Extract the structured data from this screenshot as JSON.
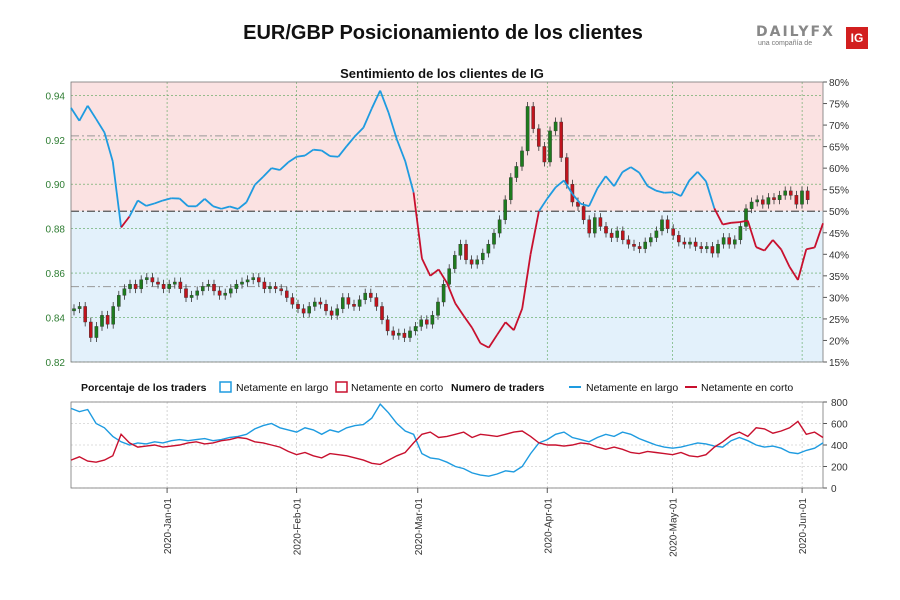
{
  "header": {
    "title": "EUR/GBP Posicionamiento de los clientes",
    "logo": {
      "word": "DAILYFX",
      "sub": "una compañía de",
      "badge": "IG"
    }
  },
  "chart_data": [
    {
      "type": "candlestick",
      "title": "Sentimiento de los clientes de IG",
      "y_left_ticks": [
        0.82,
        0.84,
        0.86,
        0.88,
        0.9,
        0.92,
        0.94
      ],
      "y_left_labels": [
        "0.82",
        "0.84",
        "0.86",
        "0.88",
        "0.90",
        "0.92",
        "0.94"
      ],
      "ylim": [
        0.82,
        0.946
      ],
      "y_right_ticks": [
        15,
        20,
        25,
        30,
        35,
        40,
        45,
        50,
        55,
        60,
        65,
        70,
        75,
        80
      ],
      "y_right_labels": [
        "15%",
        "20%",
        "25%",
        "30%",
        "35%",
        "40%",
        "45%",
        "50%",
        "55%",
        "60%",
        "65%",
        "70%",
        "75%",
        "80%"
      ],
      "y_right_lim": [
        15,
        80
      ],
      "reference_lines_pct": [
        32.5,
        50,
        67.5
      ],
      "x_ticks": [
        "2020-Jan-01",
        "2020-Feb-01",
        "2020-Mar-01",
        "2020-Apr-01",
        "2020-May-01",
        "2020-Jun-01"
      ],
      "x_tick_days": [
        23,
        54,
        83,
        114,
        144,
        175
      ],
      "x_range_days": [
        0,
        180
      ],
      "colors": {
        "up": "#1e7b1e",
        "down": "#c0141d",
        "long": "#1e9be0",
        "short": "#c8102e",
        "long_fill": "#e3f1fb",
        "short_fill": "#fbe2e2",
        "left_axis": "#2e7d32"
      },
      "candles_close": [
        [
          0,
          0.844
        ],
        [
          1,
          0.845
        ],
        [
          2,
          0.838
        ],
        [
          3,
          0.831
        ],
        [
          4,
          0.836
        ],
        [
          5,
          0.841
        ],
        [
          6,
          0.837
        ],
        [
          7,
          0.845
        ],
        [
          8,
          0.85
        ],
        [
          9,
          0.853
        ],
        [
          10,
          0.855
        ],
        [
          11,
          0.853
        ],
        [
          12,
          0.857
        ],
        [
          13,
          0.858
        ],
        [
          14,
          0.856
        ],
        [
          15,
          0.855
        ],
        [
          16,
          0.853
        ],
        [
          17,
          0.855
        ],
        [
          18,
          0.856
        ],
        [
          19,
          0.853
        ],
        [
          20,
          0.849
        ],
        [
          21,
          0.85
        ],
        [
          22,
          0.852
        ],
        [
          23,
          0.854
        ],
        [
          24,
          0.855
        ],
        [
          25,
          0.852
        ],
        [
          26,
          0.85
        ],
        [
          27,
          0.851
        ],
        [
          28,
          0.853
        ],
        [
          29,
          0.855
        ],
        [
          30,
          0.856
        ],
        [
          31,
          0.857
        ],
        [
          32,
          0.858
        ],
        [
          33,
          0.856
        ],
        [
          34,
          0.853
        ],
        [
          35,
          0.854
        ],
        [
          36,
          0.853
        ],
        [
          37,
          0.852
        ],
        [
          38,
          0.849
        ],
        [
          39,
          0.846
        ],
        [
          40,
          0.844
        ],
        [
          41,
          0.842
        ],
        [
          42,
          0.845
        ],
        [
          43,
          0.847
        ],
        [
          44,
          0.846
        ],
        [
          45,
          0.843
        ],
        [
          46,
          0.841
        ],
        [
          47,
          0.844
        ],
        [
          48,
          0.849
        ],
        [
          49,
          0.846
        ],
        [
          50,
          0.845
        ],
        [
          51,
          0.848
        ],
        [
          52,
          0.851
        ],
        [
          53,
          0.849
        ],
        [
          54,
          0.845
        ],
        [
          55,
          0.839
        ],
        [
          56,
          0.834
        ],
        [
          57,
          0.832
        ],
        [
          58,
          0.833
        ],
        [
          59,
          0.831
        ],
        [
          60,
          0.834
        ],
        [
          61,
          0.836
        ],
        [
          62,
          0.839
        ],
        [
          63,
          0.837
        ],
        [
          64,
          0.841
        ],
        [
          65,
          0.847
        ],
        [
          66,
          0.855
        ],
        [
          67,
          0.862
        ],
        [
          68,
          0.868
        ],
        [
          69,
          0.873
        ],
        [
          70,
          0.866
        ],
        [
          71,
          0.864
        ],
        [
          72,
          0.866
        ],
        [
          73,
          0.869
        ],
        [
          74,
          0.873
        ],
        [
          75,
          0.878
        ],
        [
          76,
          0.884
        ],
        [
          77,
          0.893
        ],
        [
          78,
          0.903
        ],
        [
          79,
          0.908
        ],
        [
          80,
          0.915
        ],
        [
          81,
          0.935
        ],
        [
          82,
          0.925
        ],
        [
          83,
          0.917
        ],
        [
          84,
          0.91
        ],
        [
          85,
          0.924
        ],
        [
          86,
          0.928
        ],
        [
          87,
          0.912
        ],
        [
          88,
          0.9
        ],
        [
          89,
          0.892
        ],
        [
          90,
          0.89
        ],
        [
          91,
          0.884
        ],
        [
          92,
          0.878
        ],
        [
          93,
          0.885
        ],
        [
          94,
          0.881
        ],
        [
          95,
          0.878
        ],
        [
          96,
          0.876
        ],
        [
          97,
          0.879
        ],
        [
          98,
          0.875
        ],
        [
          99,
          0.873
        ],
        [
          100,
          0.872
        ],
        [
          101,
          0.871
        ],
        [
          102,
          0.874
        ],
        [
          103,
          0.876
        ],
        [
          104,
          0.879
        ],
        [
          105,
          0.884
        ],
        [
          106,
          0.88
        ],
        [
          107,
          0.877
        ],
        [
          108,
          0.874
        ],
        [
          109,
          0.873
        ],
        [
          110,
          0.874
        ],
        [
          111,
          0.872
        ],
        [
          112,
          0.871
        ],
        [
          113,
          0.872
        ],
        [
          114,
          0.869
        ],
        [
          115,
          0.873
        ],
        [
          116,
          0.876
        ],
        [
          117,
          0.873
        ],
        [
          118,
          0.875
        ],
        [
          119,
          0.881
        ],
        [
          120,
          0.889
        ],
        [
          121,
          0.892
        ],
        [
          122,
          0.893
        ],
        [
          123,
          0.891
        ],
        [
          124,
          0.894
        ],
        [
          125,
          0.893
        ],
        [
          126,
          0.895
        ],
        [
          127,
          0.897
        ],
        [
          128,
          0.895
        ],
        [
          129,
          0.891
        ],
        [
          130,
          0.897
        ],
        [
          131,
          0.893
        ]
      ]
    },
    {
      "type": "line",
      "legend_left_title": "Porcentaje de los traders",
      "legend_right_title": "Numero de traders",
      "series": [
        {
          "name": "Netamente en largo"
        },
        {
          "name": "Netamente en corto"
        }
      ],
      "y_ticks": [
        0,
        200,
        400,
        600,
        800
      ],
      "y_labels": [
        "0",
        "200",
        "400",
        "600",
        "800"
      ],
      "ylim": [
        0,
        800
      ],
      "long_count": [
        [
          0,
          740
        ],
        [
          2,
          710
        ],
        [
          4,
          730
        ],
        [
          6,
          600
        ],
        [
          8,
          560
        ],
        [
          10,
          480
        ],
        [
          12,
          430
        ],
        [
          14,
          400
        ],
        [
          16,
          420
        ],
        [
          18,
          410
        ],
        [
          20,
          430
        ],
        [
          22,
          420
        ],
        [
          24,
          440
        ],
        [
          26,
          450
        ],
        [
          28,
          440
        ],
        [
          30,
          450
        ],
        [
          32,
          460
        ],
        [
          34,
          440
        ],
        [
          36,
          450
        ],
        [
          38,
          470
        ],
        [
          40,
          480
        ],
        [
          42,
          500
        ],
        [
          44,
          550
        ],
        [
          46,
          580
        ],
        [
          48,
          600
        ],
        [
          50,
          560
        ],
        [
          52,
          540
        ],
        [
          54,
          520
        ],
        [
          56,
          560
        ],
        [
          58,
          540
        ],
        [
          60,
          500
        ],
        [
          62,
          540
        ],
        [
          64,
          520
        ],
        [
          66,
          560
        ],
        [
          68,
          580
        ],
        [
          70,
          590
        ],
        [
          72,
          650
        ],
        [
          74,
          780
        ],
        [
          76,
          700
        ],
        [
          78,
          600
        ],
        [
          80,
          530
        ],
        [
          82,
          500
        ],
        [
          84,
          320
        ],
        [
          86,
          280
        ],
        [
          88,
          270
        ],
        [
          90,
          240
        ],
        [
          92,
          200
        ],
        [
          94,
          180
        ],
        [
          96,
          140
        ],
        [
          98,
          120
        ],
        [
          100,
          110
        ],
        [
          102,
          130
        ],
        [
          104,
          160
        ],
        [
          106,
          150
        ],
        [
          108,
          200
        ],
        [
          110,
          320
        ],
        [
          112,
          420
        ],
        [
          114,
          450
        ],
        [
          116,
          500
        ],
        [
          118,
          520
        ],
        [
          120,
          470
        ],
        [
          122,
          450
        ],
        [
          124,
          430
        ],
        [
          126,
          470
        ],
        [
          128,
          500
        ],
        [
          130,
          480
        ],
        [
          132,
          520
        ],
        [
          134,
          500
        ],
        [
          136,
          460
        ],
        [
          138,
          430
        ],
        [
          140,
          400
        ],
        [
          142,
          380
        ],
        [
          144,
          370
        ],
        [
          146,
          380
        ],
        [
          148,
          400
        ],
        [
          150,
          420
        ],
        [
          152,
          410
        ],
        [
          154,
          390
        ],
        [
          156,
          380
        ],
        [
          158,
          440
        ],
        [
          160,
          470
        ],
        [
          162,
          440
        ],
        [
          164,
          400
        ],
        [
          166,
          380
        ],
        [
          168,
          390
        ],
        [
          170,
          370
        ],
        [
          172,
          330
        ],
        [
          174,
          320
        ],
        [
          176,
          350
        ],
        [
          178,
          370
        ],
        [
          180,
          420
        ]
      ],
      "short_count": [
        [
          0,
          260
        ],
        [
          2,
          290
        ],
        [
          4,
          250
        ],
        [
          6,
          240
        ],
        [
          8,
          260
        ],
        [
          10,
          300
        ],
        [
          12,
          500
        ],
        [
          14,
          420
        ],
        [
          16,
          380
        ],
        [
          18,
          390
        ],
        [
          20,
          400
        ],
        [
          22,
          380
        ],
        [
          24,
          390
        ],
        [
          26,
          400
        ],
        [
          28,
          420
        ],
        [
          30,
          430
        ],
        [
          32,
          410
        ],
        [
          34,
          420
        ],
        [
          36,
          440
        ],
        [
          38,
          450
        ],
        [
          40,
          470
        ],
        [
          42,
          460
        ],
        [
          44,
          430
        ],
        [
          46,
          420
        ],
        [
          48,
          400
        ],
        [
          50,
          380
        ],
        [
          52,
          340
        ],
        [
          54,
          310
        ],
        [
          56,
          330
        ],
        [
          58,
          300
        ],
        [
          60,
          280
        ],
        [
          62,
          320
        ],
        [
          64,
          310
        ],
        [
          66,
          300
        ],
        [
          68,
          280
        ],
        [
          70,
          260
        ],
        [
          72,
          230
        ],
        [
          74,
          220
        ],
        [
          76,
          260
        ],
        [
          78,
          300
        ],
        [
          80,
          330
        ],
        [
          82,
          420
        ],
        [
          84,
          500
        ],
        [
          86,
          520
        ],
        [
          88,
          470
        ],
        [
          90,
          480
        ],
        [
          92,
          500
        ],
        [
          94,
          520
        ],
        [
          96,
          470
        ],
        [
          98,
          500
        ],
        [
          100,
          490
        ],
        [
          102,
          480
        ],
        [
          104,
          500
        ],
        [
          106,
          520
        ],
        [
          108,
          530
        ],
        [
          110,
          480
        ],
        [
          112,
          420
        ],
        [
          114,
          400
        ],
        [
          116,
          400
        ],
        [
          118,
          390
        ],
        [
          120,
          400
        ],
        [
          122,
          420
        ],
        [
          124,
          410
        ],
        [
          126,
          380
        ],
        [
          128,
          360
        ],
        [
          130,
          380
        ],
        [
          132,
          360
        ],
        [
          134,
          330
        ],
        [
          136,
          320
        ],
        [
          138,
          340
        ],
        [
          140,
          330
        ],
        [
          142,
          320
        ],
        [
          144,
          310
        ],
        [
          146,
          330
        ],
        [
          148,
          300
        ],
        [
          150,
          290
        ],
        [
          152,
          310
        ],
        [
          154,
          380
        ],
        [
          156,
          430
        ],
        [
          158,
          490
        ],
        [
          160,
          520
        ],
        [
          162,
          480
        ],
        [
          164,
          560
        ],
        [
          166,
          550
        ],
        [
          168,
          510
        ],
        [
          170,
          530
        ],
        [
          172,
          560
        ],
        [
          174,
          620
        ],
        [
          176,
          500
        ],
        [
          178,
          520
        ],
        [
          180,
          470
        ]
      ]
    }
  ]
}
